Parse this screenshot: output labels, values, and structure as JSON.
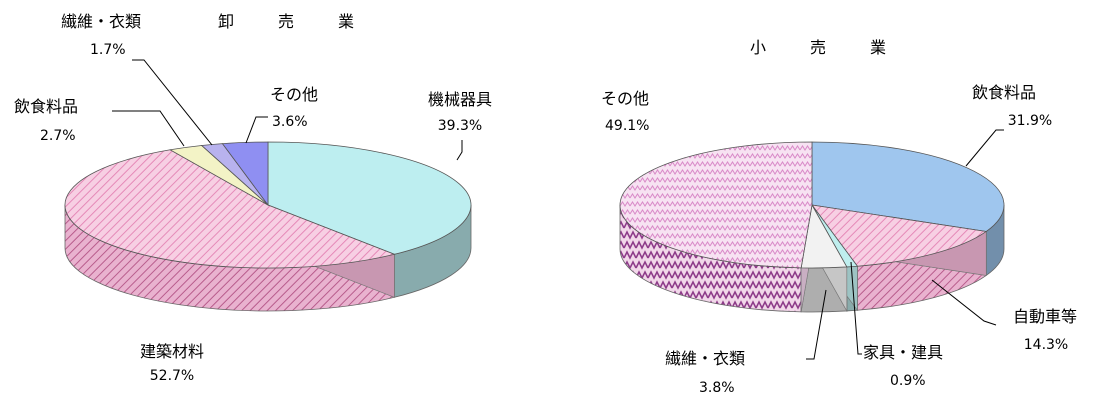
{
  "chart_data": [
    {
      "type": "pie",
      "title": "卸　売　業",
      "unit": "%",
      "slices": [
        {
          "label": "機械器具",
          "value": 39.3,
          "value_label": "39.3%",
          "color": "#bdeef0"
        },
        {
          "label": "建築材料",
          "value": 52.7,
          "value_label": "52.7%",
          "color": "#f4b8d8"
        },
        {
          "label": "飲食料品",
          "value": 2.7,
          "value_label": "2.7%",
          "color": "#f3f3c6"
        },
        {
          "label": "繊維・衣類",
          "value": 1.7,
          "value_label": "1.7%",
          "color": "#b8b2ee"
        },
        {
          "label": "その他",
          "value": 3.6,
          "value_label": "3.6%",
          "color": "#8f8ff2"
        }
      ]
    },
    {
      "type": "pie",
      "title": "小　売　業",
      "unit": "%",
      "slices": [
        {
          "label": "飲食料品",
          "value": 31.9,
          "value_label": "31.9%",
          "color": "#9fc6ee"
        },
        {
          "label": "自動車等",
          "value": 14.3,
          "value_label": "14.3%",
          "color": "#f4b8d8"
        },
        {
          "label": "家具・建具",
          "value": 0.9,
          "value_label": "0.9%",
          "color": "#bfeeee"
        },
        {
          "label": "繊維・衣類",
          "value": 3.8,
          "value_label": "3.8%",
          "color": "#f2f2f2"
        },
        {
          "label": "その他",
          "value": 49.1,
          "value_label": "49.1%",
          "color": "#f5d6ee"
        }
      ]
    }
  ]
}
